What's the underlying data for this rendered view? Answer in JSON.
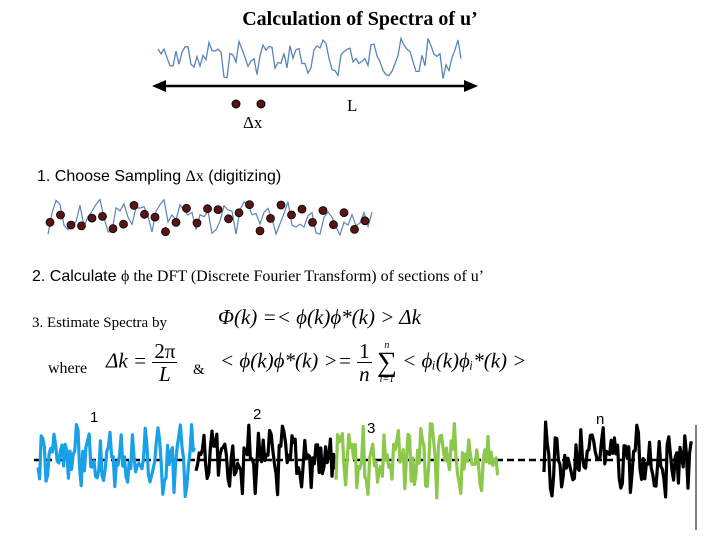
{
  "title": "Calculation of Spectra of u’",
  "labels": {
    "L": "L",
    "dx": "Δx"
  },
  "step1": {
    "text": "1. Choose Sampling ",
    "symbol": "Δx",
    "suffix": " (digitizing)"
  },
  "step2": {
    "prefix": "2. Calculate ",
    "symbol": "ϕ",
    "text": " the DFT (Discrete Fourier Transform) of  sections of u’"
  },
  "step3": {
    "text": "3. Estimate Spectra by"
  },
  "where": {
    "text": "where",
    "amp": "&"
  },
  "formulas": {
    "spectrum_lhs": "Φ(k) =",
    "spectrum_rhs": "< ϕ(k)ϕ*(k) > Δk",
    "dk_lhs": "Δk =",
    "dk_num": "2π",
    "dk_den": "L",
    "avg_lhs": "< ϕ(k)ϕ*(k) >=",
    "avg_num": "1",
    "avg_den": "n",
    "sum_top": "n",
    "sum_sym": "∑",
    "sum_bot": "i=1",
    "avg_rhs": "< ϕᵢ(k)ϕᵢ*(k) >"
  },
  "sections": [
    "1",
    "2",
    "3",
    "n"
  ],
  "colors": {
    "signal": "#5a85b8",
    "arrow": "#000000",
    "dot_fill": "#5a1414",
    "section_blue": "#1aa0e6",
    "section_black": "#000000",
    "section_green": "#8cc84b"
  }
}
